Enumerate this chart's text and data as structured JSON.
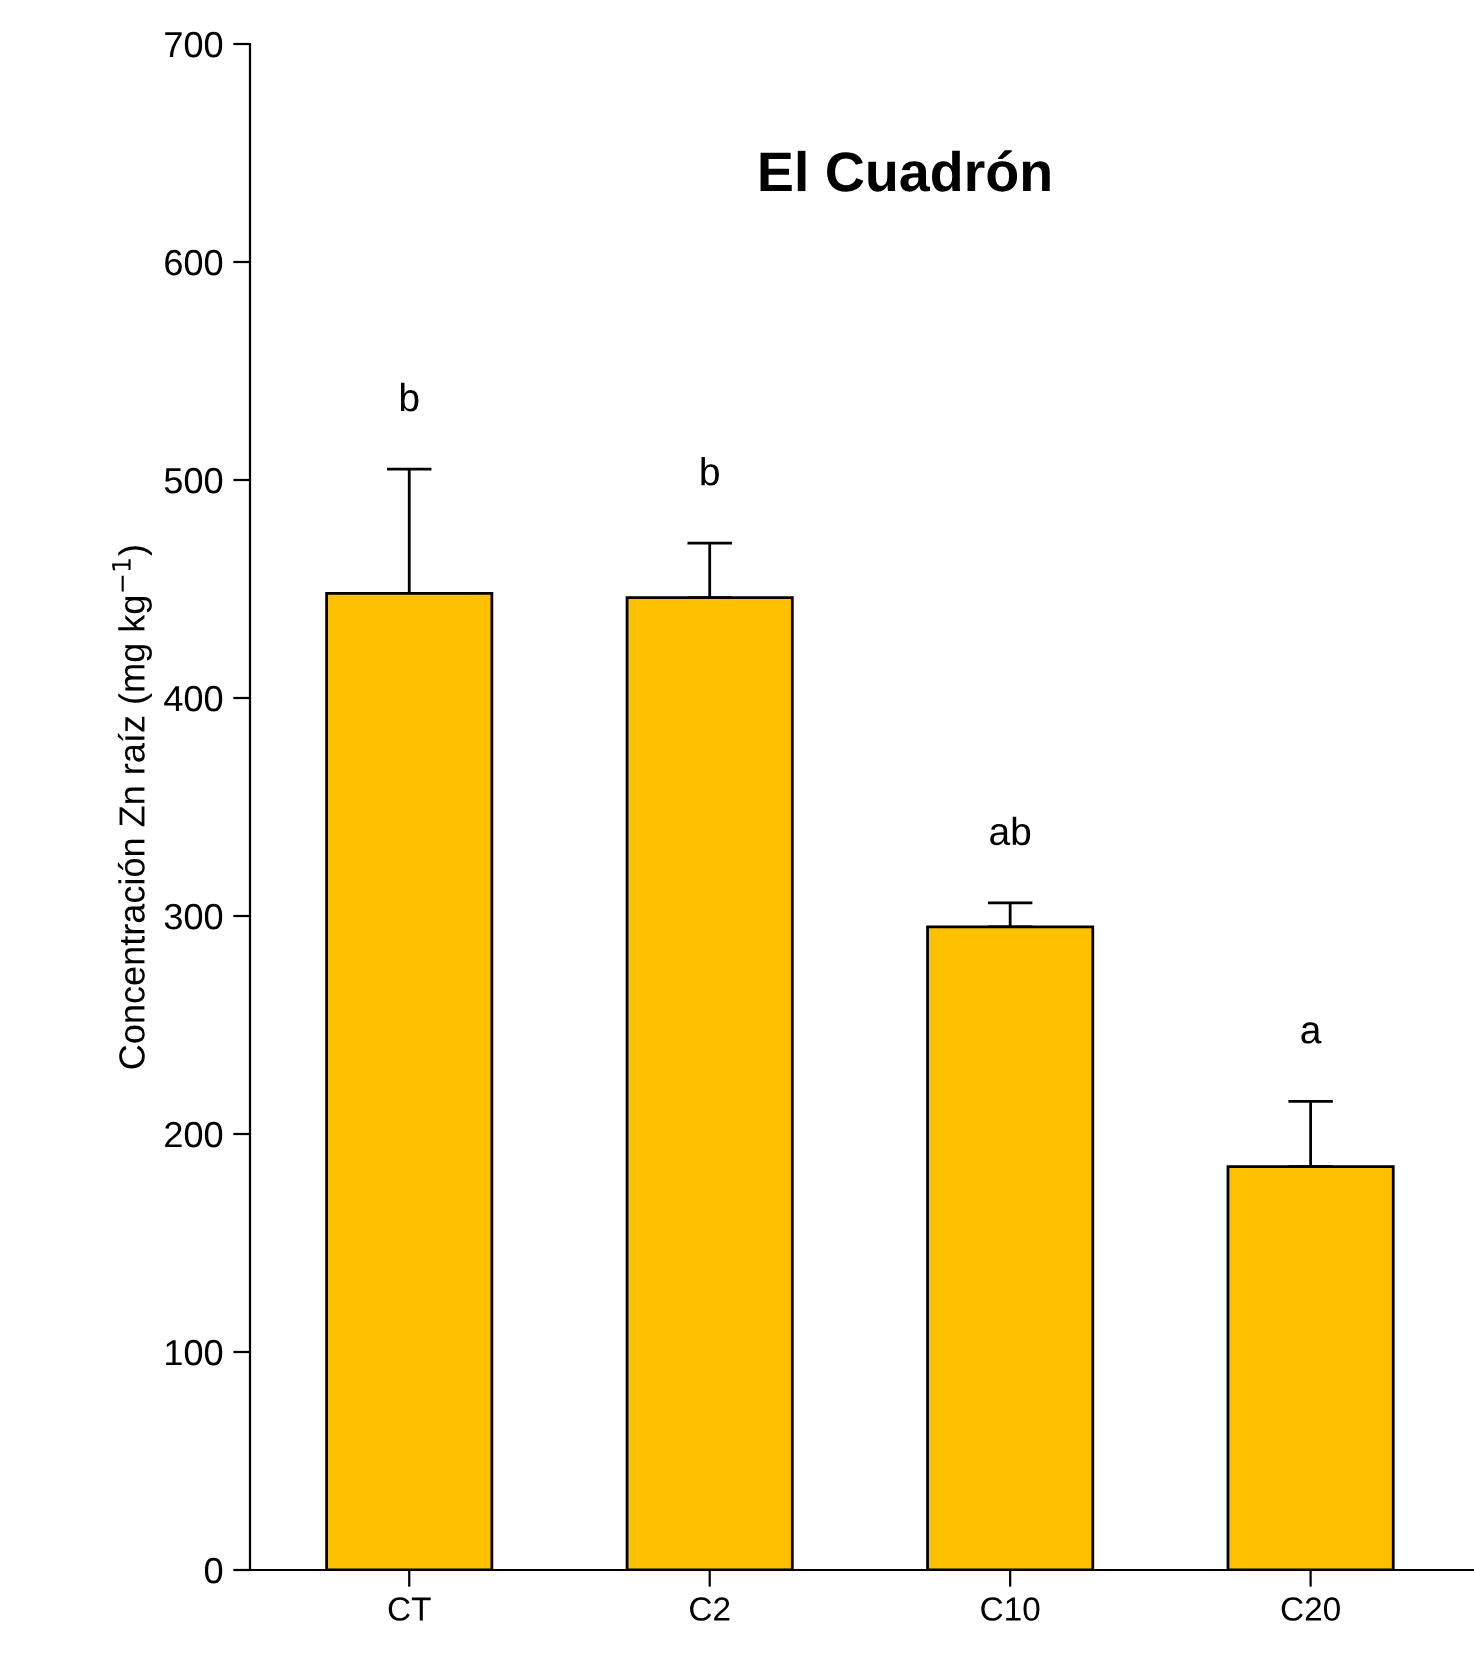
{
  "chart_data": {
    "type": "bar",
    "title": "El Cuadrón",
    "ylabel": "Concentración Zn raíz (mg kg$^{−1}$)",
    "categories": [
      "CT",
      "C2",
      "C10",
      "C20"
    ],
    "values": [
      448,
      446,
      295,
      185
    ],
    "errors": [
      [
        448,
        505
      ],
      [
        446,
        471
      ],
      [
        295,
        306
      ],
      [
        185,
        215
      ]
    ],
    "color": "#ffc000",
    "ylim": [
      0,
      700
    ],
    "yticks": [
      0,
      100,
      200,
      300,
      400,
      500,
      600,
      700
    ],
    "grid": false,
    "legend": false,
    "annotations": [
      {
        "text": "b",
        "x": "CT",
        "y": 505
      },
      {
        "text": "b",
        "x": "C2",
        "y": 471
      },
      {
        "text": "ab",
        "x": "C10",
        "y": 306
      },
      {
        "text": "a",
        "x": "C20",
        "y": 215
      }
    ]
  }
}
